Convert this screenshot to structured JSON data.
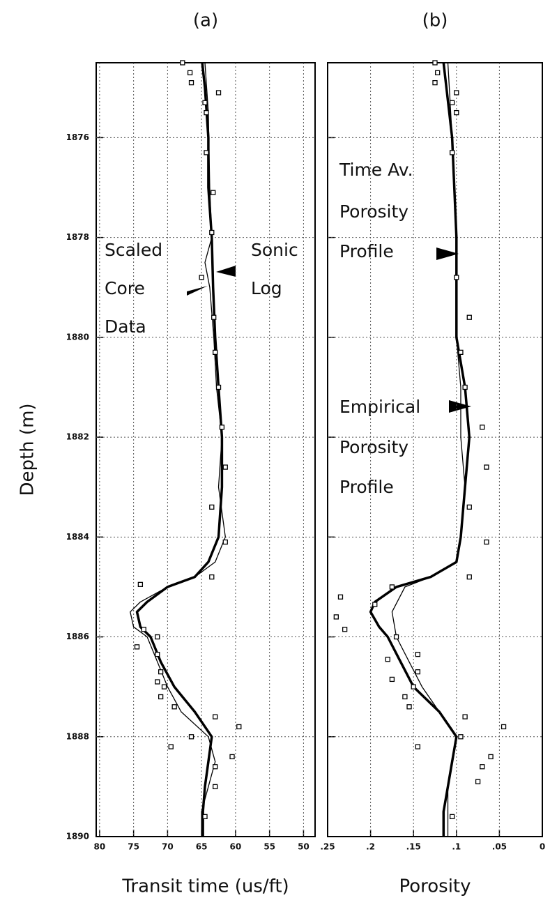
{
  "chart_data": [
    {
      "type": "line",
      "title": "(a)",
      "xlabel": "Transit time (us/ft)",
      "ylabel": "Depth (m)",
      "xlim": [
        80.5,
        48.3
      ],
      "ylim": [
        1874.5,
        1890
      ],
      "xticks": [
        80,
        75,
        70,
        65,
        60,
        55,
        50
      ],
      "yticks": [
        1876,
        1878,
        1880,
        1882,
        1884,
        1886,
        1888,
        1890
      ],
      "grid": true,
      "color": "#000",
      "annotations": [
        "Scaled",
        "Core",
        "Data",
        "Sonic",
        "Log"
      ],
      "series": [
        {
          "kind": "line",
          "width": 3.5,
          "depth": [
            1874.5,
            1875,
            1876,
            1877,
            1878,
            1879,
            1880,
            1881,
            1882,
            1883,
            1884,
            1884.5,
            1884.8,
            1885,
            1885.3,
            1885.5,
            1885.8,
            1886,
            1886.5,
            1887,
            1887.5,
            1888,
            1888.5,
            1889,
            1889.5,
            1890
          ],
          "values": [
            64.9,
            64.5,
            64,
            64,
            63.5,
            63.3,
            63,
            62.5,
            62,
            62,
            62.5,
            64,
            66,
            70,
            73,
            74.5,
            74,
            72.5,
            71,
            69,
            66,
            63.5,
            64,
            64.5,
            64.8,
            64.8
          ]
        },
        {
          "kind": "line",
          "width": 1.3,
          "depth": [
            1874.5,
            1875.5,
            1877,
            1878,
            1878.5,
            1879,
            1880,
            1881,
            1882,
            1883,
            1884,
            1884.5,
            1884.8,
            1885,
            1885.3,
            1885.5,
            1885.8,
            1886,
            1886.5,
            1887,
            1887.5,
            1888,
            1888.5,
            1889,
            1889.5,
            1890
          ],
          "values": [
            64.5,
            64,
            63.8,
            63.5,
            64.5,
            63.8,
            63.2,
            62.8,
            62,
            62.5,
            61.5,
            63,
            66,
            70,
            74,
            75.5,
            75,
            73,
            71.5,
            70,
            68,
            64,
            63,
            64,
            65,
            65
          ]
        },
        {
          "kind": "scatter",
          "depth": [
            1874.5,
            1874.7,
            1874.9,
            1875.1,
            1875.3,
            1875.5,
            1876.3,
            1877.1,
            1877.9,
            1878.8,
            1879.6,
            1880.3,
            1881,
            1881.8,
            1882.6,
            1883.4,
            1884.1,
            1884.8,
            1884.95,
            1885.85,
            1886,
            1886.2,
            1886.35,
            1886.7,
            1886.9,
            1887,
            1887.2,
            1887.4,
            1887.6,
            1887.8,
            1888,
            1888.2,
            1888.4,
            1888.6,
            1889,
            1889.6
          ],
          "values": [
            67.8,
            66.7,
            66.5,
            62.5,
            64.5,
            64.3,
            64.3,
            63.3,
            63.5,
            65,
            63.2,
            63,
            62.5,
            62,
            61.5,
            63.5,
            61.5,
            63.5,
            74,
            73.5,
            71.5,
            74.5,
            71.5,
            71,
            71.5,
            70.5,
            71,
            69,
            63,
            59.5,
            66.5,
            69.5,
            60.5,
            63,
            63,
            64.5
          ]
        }
      ]
    },
    {
      "type": "line",
      "title": "(b)",
      "xlabel": "Porosity",
      "xlim": [
        0.25,
        0
      ],
      "ylim": [
        1874.5,
        1890
      ],
      "xticks": [
        {
          "value": 0.25,
          "label": ".25"
        },
        {
          "value": 0.2,
          "label": ".2"
        },
        {
          "value": 0.15,
          "label": ".15"
        },
        {
          "value": 0.1,
          "label": ".1"
        },
        {
          "value": 0.05,
          "label": ".05"
        },
        0
      ],
      "yticks": [
        1876,
        1878,
        1880,
        1882,
        1884,
        1886,
        1888,
        1890
      ],
      "grid": true,
      "color": "#000",
      "annotations": [
        "Time Av.",
        "Porosity",
        "Profile",
        "Empirical",
        "Porosity",
        "Profile"
      ],
      "series": [
        {
          "kind": "line",
          "width": 3.5,
          "depth": [
            1874.5,
            1876,
            1878,
            1880,
            1881,
            1882,
            1883,
            1884,
            1884.5,
            1884.8,
            1885,
            1885.3,
            1885.5,
            1885.8,
            1886,
            1886.5,
            1887,
            1887.5,
            1888,
            1888.5,
            1889,
            1889.5,
            1890
          ],
          "values": [
            0.115,
            0.105,
            0.1,
            0.1,
            0.09,
            0.085,
            0.09,
            0.095,
            0.1,
            0.13,
            0.17,
            0.195,
            0.2,
            0.19,
            0.18,
            0.165,
            0.15,
            0.12,
            0.1,
            0.105,
            0.11,
            0.115,
            0.115
          ]
        },
        {
          "kind": "line",
          "width": 1.3,
          "depth": [
            1874.5,
            1876,
            1878,
            1880,
            1881,
            1882,
            1883,
            1884,
            1884.5,
            1884.8,
            1885,
            1885.5,
            1886,
            1886.5,
            1887,
            1887.5,
            1888,
            1888.5,
            1889,
            1890
          ],
          "values": [
            0.11,
            0.105,
            0.1,
            0.1,
            0.095,
            0.095,
            0.09,
            0.095,
            0.1,
            0.13,
            0.16,
            0.175,
            0.17,
            0.155,
            0.14,
            0.12,
            0.1,
            0.105,
            0.11,
            0.11
          ]
        },
        {
          "kind": "scatter",
          "depth": [
            1874.5,
            1874.7,
            1874.9,
            1875.1,
            1875.3,
            1875.5,
            1876.3,
            1878.8,
            1879.6,
            1880.3,
            1881,
            1881.8,
            1882.6,
            1883.4,
            1884.1,
            1884.8,
            1885,
            1885.2,
            1885.35,
            1885.6,
            1885.85,
            1886,
            1886.35,
            1886.45,
            1886.7,
            1886.85,
            1887,
            1887.2,
            1887.4,
            1887.6,
            1887.8,
            1888,
            1888.2,
            1888.4,
            1888.6,
            1888.9,
            1889.6
          ],
          "values": [
            0.125,
            0.122,
            0.125,
            0.1,
            0.105,
            0.1,
            0.105,
            0.1,
            0.085,
            0.095,
            0.09,
            0.07,
            0.065,
            0.085,
            0.065,
            0.085,
            0.175,
            0.235,
            0.195,
            0.24,
            0.23,
            0.17,
            0.145,
            0.18,
            0.145,
            0.175,
            0.15,
            0.16,
            0.155,
            0.09,
            0.045,
            0.095,
            0.145,
            0.06,
            0.07,
            0.075,
            0.105
          ]
        }
      ]
    }
  ]
}
